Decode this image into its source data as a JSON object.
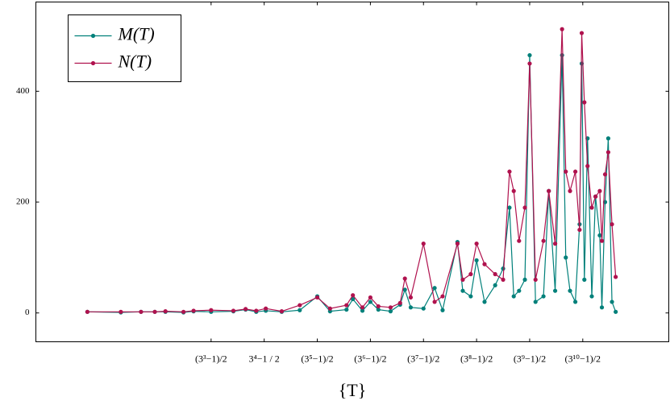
{
  "chart_data": {
    "type": "line",
    "x_label": "{T}",
    "x": [
      0.67,
      1.3,
      1.68,
      1.94,
      2.14,
      2.48,
      2.67,
      3.0,
      3.42,
      3.65,
      3.85,
      4.03,
      4.33,
      4.67,
      5.0,
      5.24,
      5.55,
      5.67,
      5.85,
      6.0,
      6.15,
      6.38,
      6.56,
      6.65,
      6.76,
      7.0,
      7.21,
      7.36,
      7.64,
      7.74,
      7.89,
      8.0,
      8.15,
      8.35,
      8.5,
      8.62,
      8.7,
      8.8,
      8.91,
      9.0,
      9.11,
      9.26,
      9.36,
      9.48,
      9.61,
      9.68,
      9.76,
      9.86,
      9.94,
      9.98,
      10.03,
      10.09,
      10.17,
      10.24,
      10.32,
      10.36,
      10.42,
      10.48,
      10.55,
      10.62
    ],
    "series": [
      {
        "name": "M(T)",
        "color": "#00807a",
        "values": [
          2,
          1,
          2,
          2,
          2,
          1,
          3,
          2,
          3,
          6,
          2,
          4,
          2,
          5,
          30,
          3,
          6,
          25,
          4,
          20,
          6,
          3,
          15,
          42,
          10,
          8,
          45,
          5,
          128,
          40,
          30,
          95,
          20,
          50,
          80,
          190,
          30,
          40,
          60,
          465,
          20,
          30,
          220,
          40,
          465,
          100,
          40,
          20,
          160,
          450,
          60,
          315,
          30,
          210,
          140,
          10,
          200,
          315,
          20,
          2
        ]
      },
      {
        "name": "N(T)",
        "color": "#b0124e",
        "values": [
          2,
          2,
          2,
          2,
          3,
          2,
          4,
          5,
          4,
          7,
          4,
          8,
          3,
          14,
          28,
          8,
          14,
          32,
          10,
          28,
          12,
          10,
          18,
          62,
          28,
          125,
          20,
          30,
          125,
          60,
          70,
          125,
          88,
          70,
          60,
          255,
          220,
          130,
          190,
          450,
          60,
          130,
          220,
          125,
          512,
          255,
          220,
          255,
          150,
          505,
          380,
          265,
          190,
          210,
          220,
          130,
          250,
          290,
          160,
          65
        ]
      }
    ],
    "xlim": [
      -0.3,
      11.62
    ],
    "ylim": [
      -52,
      561
    ],
    "xticks": [
      {
        "value": 3,
        "label": "(3³−1)/2"
      },
      {
        "value": 4,
        "label": "3⁴−1 / 2"
      },
      {
        "value": 5,
        "label": "(3⁵−1)/2"
      },
      {
        "value": 6,
        "label": "(3⁶−1)/2"
      },
      {
        "value": 7,
        "label": "(3⁷−1)/2"
      },
      {
        "value": 8,
        "label": "(3⁸−1)/2"
      },
      {
        "value": 9,
        "label": "(3⁹−1)/2"
      },
      {
        "value": 10,
        "label": "(3¹⁰−1)/2"
      }
    ],
    "yticks": [
      0,
      200,
      400
    ],
    "legend": "top-left"
  }
}
